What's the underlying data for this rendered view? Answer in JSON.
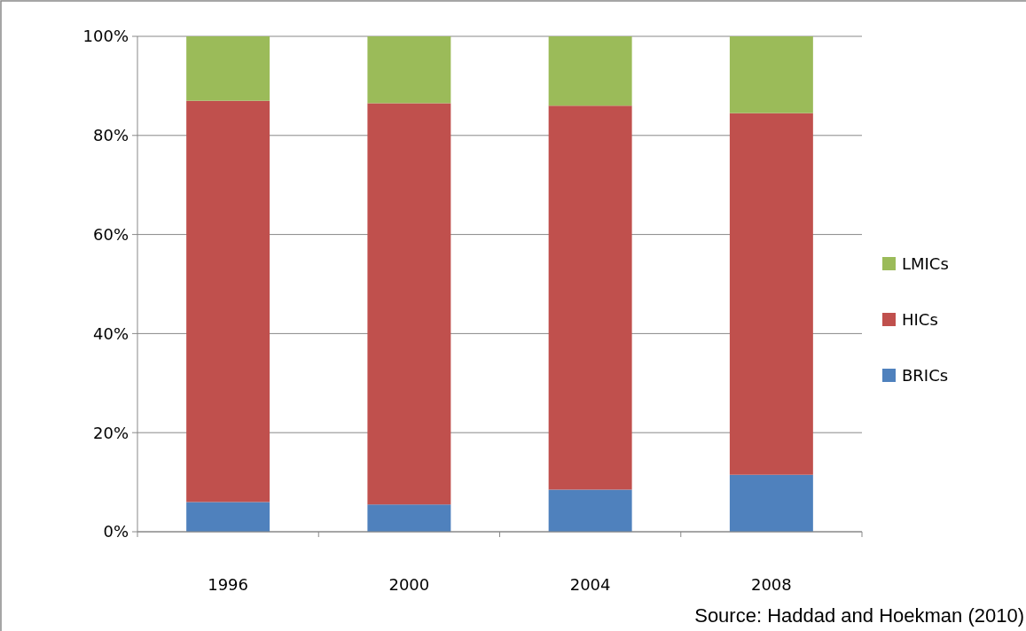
{
  "chart_data": {
    "type": "bar",
    "stacked": true,
    "categories": [
      "1996",
      "2000",
      "2004",
      "2008"
    ],
    "series": [
      {
        "name": "BRICs",
        "color": "#4f81bd",
        "values": [
          6,
          5.5,
          8.5,
          11.5
        ]
      },
      {
        "name": "HICs",
        "color": "#c0504d",
        "values": [
          81,
          81,
          77.5,
          73
        ]
      },
      {
        "name": "LMICs",
        "color": "#9bbb59",
        "values": [
          13,
          13.5,
          14,
          15.5
        ]
      }
    ],
    "ylim": [
      0,
      100
    ],
    "yticks": [
      {
        "value": 0,
        "label": "0%"
      },
      {
        "value": 20,
        "label": "20%"
      },
      {
        "value": 40,
        "label": "40%"
      },
      {
        "value": 60,
        "label": "60%"
      },
      {
        "value": 80,
        "label": "80%"
      },
      {
        "value": 100,
        "label": "100%"
      }
    ],
    "grid": "y",
    "legend": "right",
    "annotations": [
      "Source: Haddad and Hoekman (2010)"
    ]
  }
}
